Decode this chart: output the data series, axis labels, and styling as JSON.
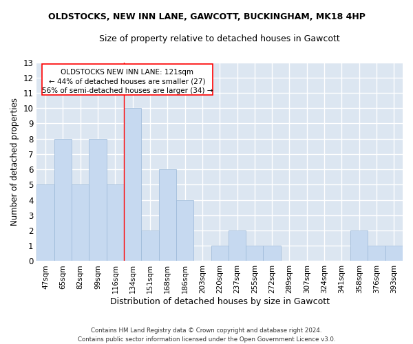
{
  "title1": "OLDSTOCKS, NEW INN LANE, GAWCOTT, BUCKINGHAM, MK18 4HP",
  "title2": "Size of property relative to detached houses in Gawcott",
  "xlabel": "Distribution of detached houses by size in Gawcott",
  "ylabel": "Number of detached properties",
  "categories": [
    "47sqm",
    "65sqm",
    "82sqm",
    "99sqm",
    "116sqm",
    "134sqm",
    "151sqm",
    "168sqm",
    "186sqm",
    "203sqm",
    "220sqm",
    "237sqm",
    "255sqm",
    "272sqm",
    "289sqm",
    "307sqm",
    "324sqm",
    "341sqm",
    "358sqm",
    "376sqm",
    "393sqm"
  ],
  "values": [
    5,
    8,
    5,
    8,
    5,
    10,
    2,
    6,
    4,
    0,
    1,
    2,
    1,
    1,
    0,
    0,
    0,
    0,
    2,
    1,
    1
  ],
  "bar_color": "#c6d9f0",
  "bar_edge_color": "#9ab8d8",
  "background_color": "#dce6f1",
  "grid_color": "#ffffff",
  "annotation_line1": "OLDSTOCKS NEW INN LANE: 121sqm",
  "annotation_line2": "← 44% of detached houses are smaller (27)",
  "annotation_line3": "56% of semi-detached houses are larger (34) →",
  "redline_x": 4.5,
  "ylim": [
    0,
    13
  ],
  "yticks": [
    0,
    1,
    2,
    3,
    4,
    5,
    6,
    7,
    8,
    9,
    10,
    11,
    12,
    13
  ],
  "footer1": "Contains HM Land Registry data © Crown copyright and database right 2024.",
  "footer2": "Contains public sector information licensed under the Open Government Licence v3.0."
}
